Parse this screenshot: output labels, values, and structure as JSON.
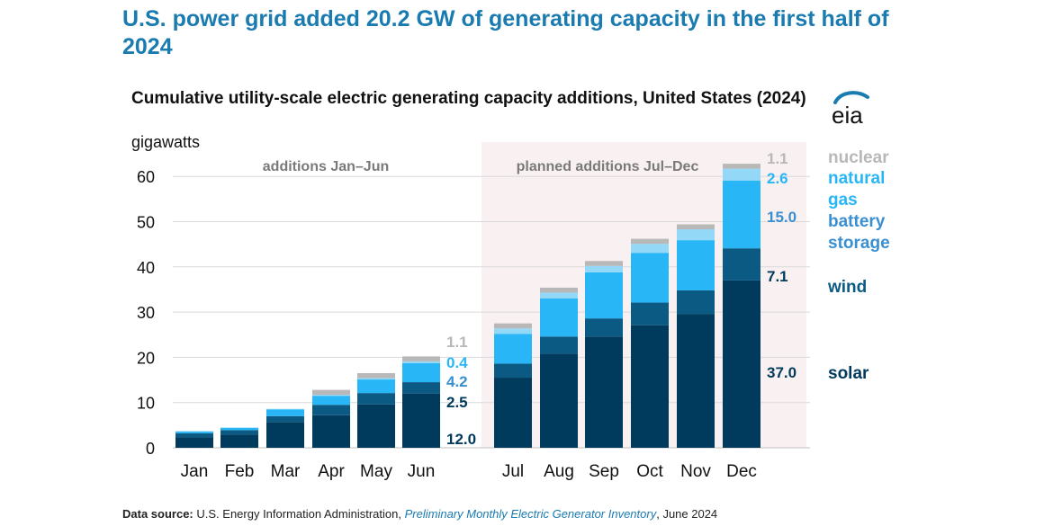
{
  "headline": "U.S. power grid added 20.2 GW of generating capacity in the first half of 2024",
  "source": {
    "label": "Data source:",
    "publisher": "U.S. Energy Information Administration,",
    "publication": "Preliminary Monthly Electric Generator Inventory",
    "date": ", June 2024"
  },
  "logo_text": "eia",
  "colors": {
    "solar": "#003a5c",
    "wind": "#0b5a84",
    "battery": "#29b6f6",
    "gas": "#94d8f8",
    "nuclear": "#b8b8b8",
    "shade": "#f9f1f1",
    "legend_battery": "#3a8fd0"
  },
  "chart_data": {
    "type": "bar",
    "stacked": true,
    "title": "Cumulative utility-scale electric generating capacity additions, United States (2024)",
    "ylabel": "gigawatts",
    "ylim": [
      0,
      65
    ],
    "yticks": [
      0,
      10,
      20,
      30,
      40,
      50,
      60
    ],
    "grid": true,
    "categories": [
      "Jan",
      "Feb",
      "Mar",
      "Apr",
      "May",
      "Jun",
      "Jul",
      "Aug",
      "Sep",
      "Oct",
      "Nov",
      "Dec"
    ],
    "series": [
      {
        "name": "solar",
        "values": [
          2.3,
          2.9,
          5.7,
          7.2,
          9.6,
          12.0,
          15.5,
          20.8,
          24.6,
          27.1,
          29.6,
          37.0
        ]
      },
      {
        "name": "wind",
        "values": [
          0.9,
          1.0,
          1.3,
          2.3,
          2.5,
          2.5,
          3.1,
          3.8,
          4.0,
          5.0,
          5.2,
          7.1
        ]
      },
      {
        "name": "battery storage",
        "values": [
          0.4,
          0.5,
          1.5,
          2.0,
          3.0,
          4.2,
          6.6,
          8.4,
          10.2,
          11.0,
          11.1,
          15.0
        ]
      },
      {
        "name": "natural gas",
        "values": [
          0.1,
          0.1,
          0.1,
          0.2,
          0.3,
          0.4,
          1.2,
          1.3,
          1.4,
          2.0,
          2.4,
          2.6
        ]
      },
      {
        "name": "nuclear",
        "values": [
          0.0,
          0.0,
          0.0,
          1.1,
          1.1,
          1.1,
          1.1,
          1.1,
          1.1,
          1.1,
          1.1,
          1.1
        ]
      }
    ],
    "groups": [
      {
        "label": "additions Jan–Jun",
        "from": 0,
        "to": 5
      },
      {
        "label": "planned additions Jul–Dec",
        "from": 6,
        "to": 11,
        "shaded": true
      }
    ],
    "jun_labels": [
      "1.1",
      "0.4",
      "4.2",
      "2.5",
      "12.0"
    ],
    "dec_labels": [
      "1.1",
      "2.6",
      "15.0",
      "7.1",
      "37.0"
    ],
    "legend": [
      "nuclear",
      "natural gas",
      "battery storage",
      "wind",
      "solar"
    ],
    "legend_lines": [
      [
        "nuclear"
      ],
      [
        "natural",
        "gas"
      ],
      [
        "battery",
        "storage"
      ],
      [
        "wind"
      ],
      [
        "solar"
      ]
    ],
    "legend_placement": "right"
  }
}
